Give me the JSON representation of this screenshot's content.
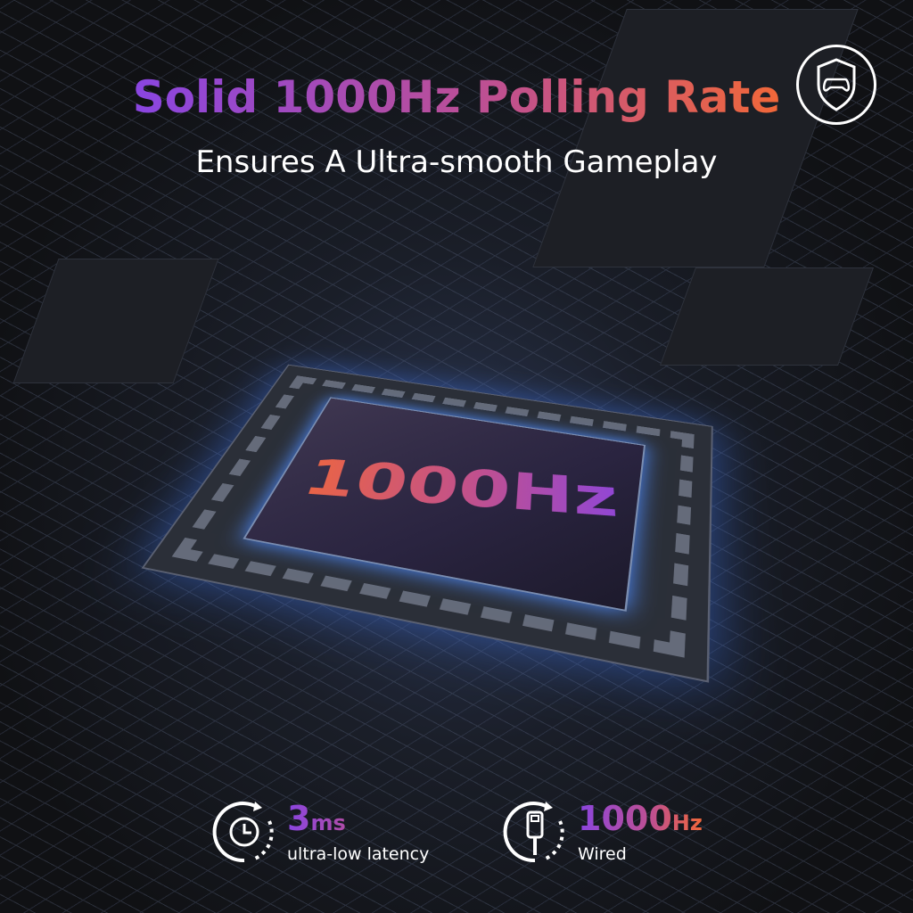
{
  "headline": "Solid 1000Hz Polling Rate",
  "subheadline": "Ensures A Ultra-smooth Gameplay",
  "badge_icon": "shield-gamepad-icon",
  "chip_label": "1000Hz",
  "features": [
    {
      "icon": "clock-cycle-icon",
      "value": "3",
      "unit": "ms",
      "label": "ultra-low latency"
    },
    {
      "icon": "usb-cable-cycle-icon",
      "value": "1000",
      "unit": "Hz",
      "label": "Wired"
    }
  ],
  "colors": {
    "gradient_start": "#8a45e0",
    "gradient_mid": "#c0508f",
    "gradient_end": "#f0673a",
    "background": "#121317"
  }
}
